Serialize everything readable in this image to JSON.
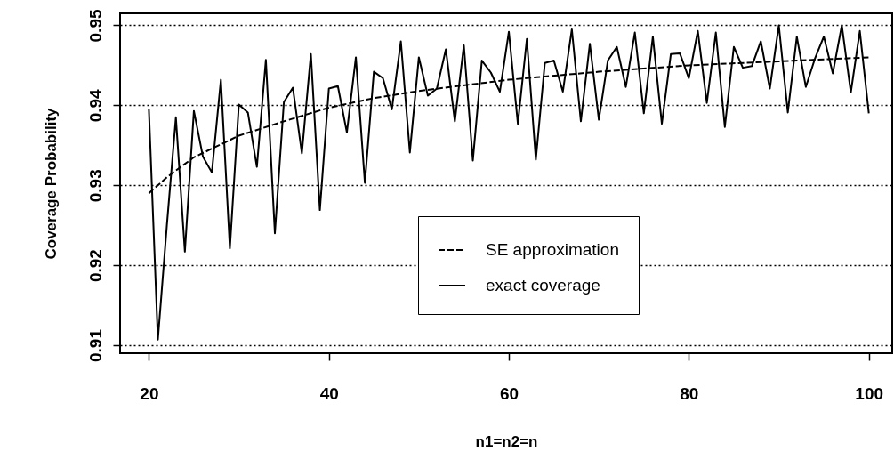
{
  "chart_data": {
    "type": "line",
    "xlabel": "n1=n2=n",
    "ylabel": "Coverage Probability",
    "xlim": [
      16.8,
      102.6
    ],
    "ylim": [
      0.909,
      0.9515
    ],
    "xticks": [
      20,
      40,
      60,
      80,
      100
    ],
    "yticks": [
      0.91,
      0.92,
      0.93,
      0.94,
      0.95
    ],
    "grid": "y",
    "legend": "bottom right",
    "marker": "none",
    "series": [
      {
        "name": "SE approximation",
        "color": "#000000",
        "line_style": "dashed",
        "x": [
          20,
          22,
          25,
          30,
          35,
          40,
          45,
          50,
          60,
          70,
          80,
          90,
          100
        ],
        "values": [
          0.929,
          0.931,
          0.9335,
          0.9362,
          0.938,
          0.9397,
          0.9409,
          0.9418,
          0.9432,
          0.9442,
          0.945,
          0.9455,
          0.946
        ]
      },
      {
        "name": "exact coverage",
        "color": "#000000",
        "line_style": "solid",
        "x": [
          20,
          21,
          22,
          23,
          24,
          25,
          26,
          27,
          28,
          29,
          30,
          31,
          32,
          33,
          34,
          35,
          36,
          37,
          38,
          39,
          40,
          41,
          42,
          43,
          44,
          45,
          46,
          47,
          48,
          49,
          50,
          51,
          52,
          53,
          54,
          55,
          56,
          57,
          58,
          59,
          60,
          61,
          62,
          63,
          64,
          65,
          66,
          67,
          68,
          69,
          70,
          71,
          72,
          73,
          74,
          75,
          76,
          77,
          78,
          79,
          80,
          81,
          82,
          83,
          84,
          85,
          86,
          87,
          88,
          89,
          90,
          91,
          92,
          93,
          94,
          95,
          96,
          97,
          98,
          99,
          100
        ],
        "values": [
          0.9395,
          0.9107,
          0.925,
          0.9385,
          0.9217,
          0.9393,
          0.9336,
          0.9316,
          0.9432,
          0.9221,
          0.9401,
          0.9391,
          0.9323,
          0.9457,
          0.924,
          0.9404,
          0.9422,
          0.934,
          0.9464,
          0.9269,
          0.9421,
          0.9424,
          0.9366,
          0.946,
          0.9303,
          0.9442,
          0.9434,
          0.9395,
          0.948,
          0.9341,
          0.946,
          0.9412,
          0.9421,
          0.947,
          0.938,
          0.9475,
          0.9331,
          0.9456,
          0.9441,
          0.9417,
          0.9492,
          0.9377,
          0.9483,
          0.9332,
          0.9453,
          0.9456,
          0.9417,
          0.9495,
          0.938,
          0.9477,
          0.9382,
          0.9456,
          0.9473,
          0.9423,
          0.9491,
          0.939,
          0.9486,
          0.9377,
          0.9464,
          0.9465,
          0.9434,
          0.9493,
          0.9403,
          0.9491,
          0.9373,
          0.9473,
          0.9447,
          0.9449,
          0.948,
          0.9421,
          0.95,
          0.9391,
          0.9486,
          0.9423,
          0.9458,
          0.9486,
          0.944,
          0.95,
          0.9416,
          0.9493,
          0.939
        ]
      }
    ]
  }
}
